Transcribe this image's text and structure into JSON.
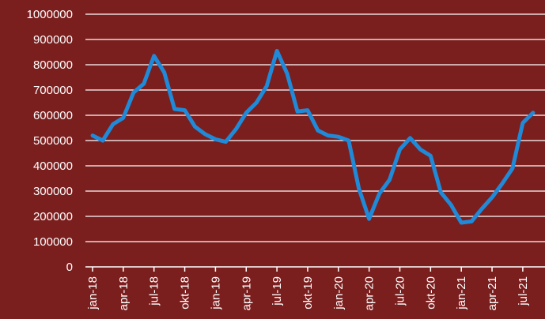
{
  "chart_data": {
    "type": "line",
    "title": "",
    "xlabel": "",
    "ylabel": "",
    "ylim": [
      0,
      1000000
    ],
    "yticks": [
      0,
      100000,
      200000,
      300000,
      400000,
      500000,
      600000,
      700000,
      800000,
      900000,
      1000000
    ],
    "ytick_labels": [
      "0",
      "100000",
      "200000",
      "300000",
      "400000",
      "500000",
      "600000",
      "700000",
      "800000",
      "900000",
      "1000000"
    ],
    "grid": true,
    "legend": "none",
    "x_ticks": [
      {
        "index": 0,
        "label": "jan-18"
      },
      {
        "index": 3,
        "label": "apr-18"
      },
      {
        "index": 6,
        "label": "jul-18"
      },
      {
        "index": 9,
        "label": "okt-18"
      },
      {
        "index": 12,
        "label": "jan-19"
      },
      {
        "index": 15,
        "label": "apr-19"
      },
      {
        "index": 18,
        "label": "jul-19"
      },
      {
        "index": 21,
        "label": "okt-19"
      },
      {
        "index": 24,
        "label": "jan-20"
      },
      {
        "index": 27,
        "label": "apr-20"
      },
      {
        "index": 30,
        "label": "jul-20"
      },
      {
        "index": 33,
        "label": "okt-20"
      },
      {
        "index": 36,
        "label": "jan-21"
      },
      {
        "index": 39,
        "label": "apr-21"
      },
      {
        "index": 42,
        "label": "jul-21"
      }
    ],
    "series": [
      {
        "values": [
          520000,
          500000,
          565000,
          590000,
          690000,
          725000,
          835000,
          770000,
          625000,
          620000,
          555000,
          525000,
          505000,
          495000,
          545000,
          610000,
          650000,
          715000,
          855000,
          765000,
          615000,
          620000,
          540000,
          520000,
          515000,
          500000,
          310000,
          190000,
          290000,
          345000,
          465000,
          510000,
          465000,
          440000,
          295000,
          245000,
          175000,
          180000,
          230000,
          275000,
          330000,
          390000,
          570000,
          610000
        ],
        "color": "#1f8ad8"
      }
    ],
    "colors": {
      "background": "#7b1e1e",
      "grid": "#ffffff",
      "text": "#ffffff",
      "line": "#1f8ad8"
    }
  }
}
